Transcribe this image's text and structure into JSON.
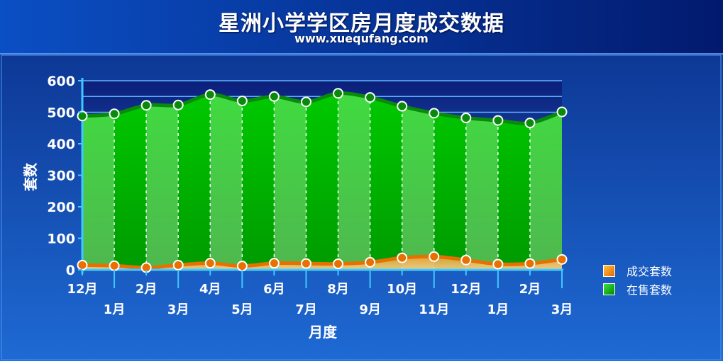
{
  "chart_data": {
    "type": "area",
    "title": "星洲小学学区房月度成交数据",
    "subtitle": "www.xuequfang.com",
    "xlabel": "月度",
    "ylabel": "套数",
    "ylim": [
      0,
      600
    ],
    "yticks": [
      0,
      100,
      200,
      300,
      400,
      500,
      600
    ],
    "categories": [
      "12月",
      "1月",
      "2月",
      "3月",
      "4月",
      "5月",
      "6月",
      "7月",
      "8月",
      "9月",
      "10月",
      "11月",
      "12月",
      "1月",
      "2月",
      "3月"
    ],
    "series": [
      {
        "name": "在售套数",
        "color": "#00aa00",
        "values": [
          488,
          495,
          522,
          523,
          556,
          536,
          550,
          533,
          560,
          547,
          519,
          497,
          482,
          474,
          466,
          501
        ]
      },
      {
        "name": "成交套数",
        "color": "#ff8800",
        "values": [
          15,
          13,
          7,
          15,
          21,
          12,
          21,
          20,
          19,
          24,
          38,
          42,
          31,
          18,
          20,
          33
        ]
      }
    ],
    "legend": "right",
    "grid": false
  }
}
